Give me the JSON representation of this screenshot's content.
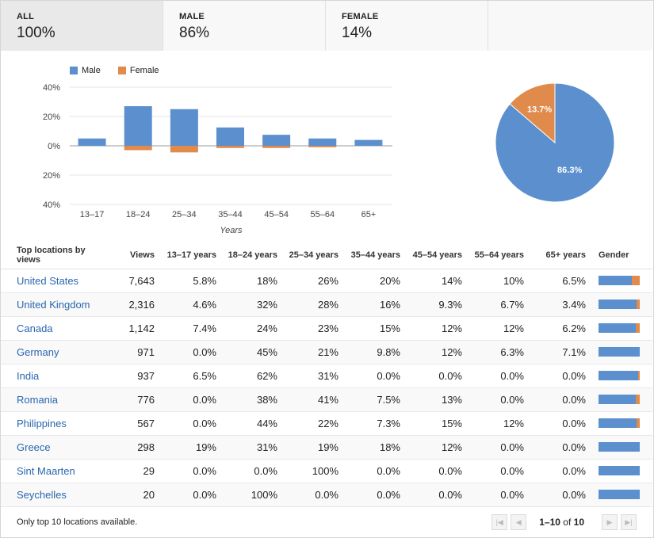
{
  "tabs": [
    {
      "label": "ALL",
      "value": "100%"
    },
    {
      "label": "MALE",
      "value": "86%"
    },
    {
      "label": "FEMALE",
      "value": "14%"
    }
  ],
  "colors": {
    "male": "#5b8fcd",
    "female": "#e08a4c"
  },
  "chart_data": [
    {
      "type": "bar",
      "categories": [
        "13–17",
        "18–24",
        "25–34",
        "35–44",
        "45–54",
        "55–64",
        "65+"
      ],
      "series": [
        {
          "name": "Male",
          "values": [
            5,
            27,
            25,
            12.5,
            7.5,
            5,
            4
          ]
        },
        {
          "name": "Female",
          "values": [
            0,
            -3,
            -4.5,
            -1.5,
            -1.5,
            -1,
            0
          ]
        }
      ],
      "xlabel": "Years",
      "ylabel": "",
      "ylim": [
        -40,
        40
      ],
      "yticks": [
        40,
        20,
        0,
        -20,
        -40
      ],
      "ytick_labels": [
        "40%",
        "20%",
        "0%",
        "20%",
        "40%"
      ],
      "legend_position": "top-left",
      "grid": true
    },
    {
      "type": "pie",
      "slices": [
        {
          "name": "Male",
          "value": 86.3,
          "label": "86.3%"
        },
        {
          "name": "Female",
          "value": 13.7,
          "label": "13.7%"
        }
      ]
    }
  ],
  "table": {
    "headers": [
      "Top locations by views",
      "Views",
      "13–17 years",
      "18–24 years",
      "25–34 years",
      "35–44 years",
      "45–54 years",
      "55–64 years",
      "65+ years",
      "Gender"
    ],
    "rows": [
      {
        "location": "United States",
        "views": "7,643",
        "ages": [
          "5.8%",
          "18%",
          "26%",
          "20%",
          "14%",
          "10%",
          "6.5%"
        ],
        "male_share": 0.8
      },
      {
        "location": "United Kingdom",
        "views": "2,316",
        "ages": [
          "4.6%",
          "32%",
          "28%",
          "16%",
          "9.3%",
          "6.7%",
          "3.4%"
        ],
        "male_share": 0.92
      },
      {
        "location": "Canada",
        "views": "1,142",
        "ages": [
          "7.4%",
          "24%",
          "23%",
          "15%",
          "12%",
          "12%",
          "6.2%"
        ],
        "male_share": 0.9
      },
      {
        "location": "Germany",
        "views": "971",
        "ages": [
          "0.0%",
          "45%",
          "21%",
          "9.8%",
          "12%",
          "6.3%",
          "7.1%"
        ],
        "male_share": 1.0
      },
      {
        "location": "India",
        "views": "937",
        "ages": [
          "6.5%",
          "62%",
          "31%",
          "0.0%",
          "0.0%",
          "0.0%",
          "0.0%"
        ],
        "male_share": 0.97
      },
      {
        "location": "Romania",
        "views": "776",
        "ages": [
          "0.0%",
          "38%",
          "41%",
          "7.5%",
          "13%",
          "0.0%",
          "0.0%"
        ],
        "male_share": 0.9
      },
      {
        "location": "Philippines",
        "views": "567",
        "ages": [
          "0.0%",
          "44%",
          "22%",
          "7.3%",
          "15%",
          "12%",
          "0.0%"
        ],
        "male_share": 0.93
      },
      {
        "location": "Greece",
        "views": "298",
        "ages": [
          "19%",
          "31%",
          "19%",
          "18%",
          "12%",
          "0.0%",
          "0.0%"
        ],
        "male_share": 1.0
      },
      {
        "location": "Sint Maarten",
        "views": "29",
        "ages": [
          "0.0%",
          "0.0%",
          "100%",
          "0.0%",
          "0.0%",
          "0.0%",
          "0.0%"
        ],
        "male_share": 1.0
      },
      {
        "location": "Seychelles",
        "views": "20",
        "ages": [
          "0.0%",
          "100%",
          "0.0%",
          "0.0%",
          "0.0%",
          "0.0%",
          "0.0%"
        ],
        "male_share": 1.0
      }
    ]
  },
  "footer": {
    "note": "Only top 10 locations available.",
    "range": "1–10",
    "of_label": "of",
    "total": "10",
    "icons": {
      "first": "first-page-icon",
      "prev": "prev-page-icon",
      "next": "next-page-icon",
      "last": "last-page-icon"
    }
  }
}
